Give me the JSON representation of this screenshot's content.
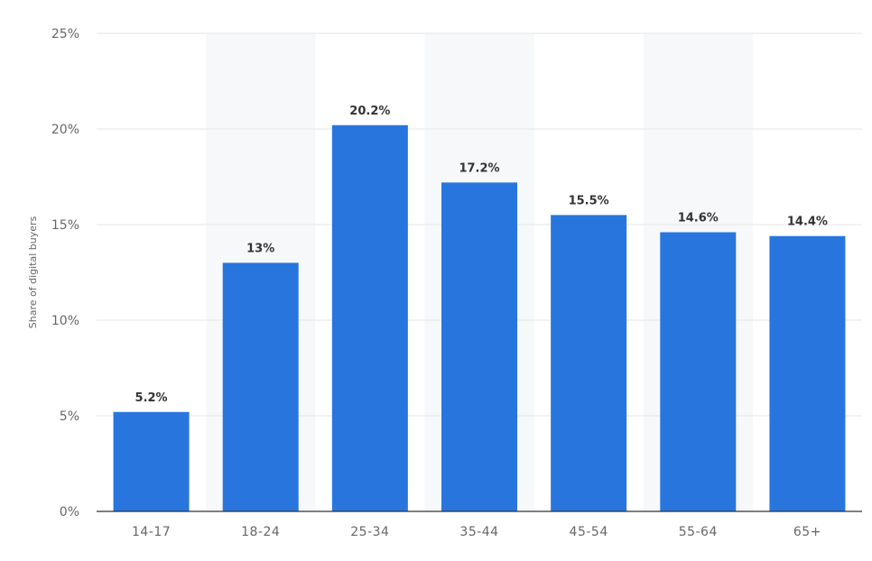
{
  "colors": {
    "bar": "#2876DD",
    "band": "#f7f8fa",
    "grid": "#e6e6e6",
    "axis": "#333333"
  },
  "chart_data": {
    "type": "bar",
    "title": "",
    "xlabel": "",
    "ylabel": "Share of digital buyers",
    "categories": [
      "14-17",
      "18-24",
      "25-34",
      "35-44",
      "45-54",
      "55-64",
      "65+"
    ],
    "values": [
      5.2,
      13,
      20.2,
      17.2,
      15.5,
      14.6,
      14.4
    ],
    "data_labels": [
      "5.2%",
      "13%",
      "20.2%",
      "17.2%",
      "15.5%",
      "14.6%",
      "14.4%"
    ],
    "ylim": [
      0,
      25
    ],
    "yticks": [
      0,
      5,
      10,
      15,
      20,
      25
    ],
    "ytick_labels": [
      "0%",
      "5%",
      "10%",
      "15%",
      "20%",
      "25%"
    ],
    "grid": true,
    "legend": "none",
    "alternating_bands": true
  }
}
